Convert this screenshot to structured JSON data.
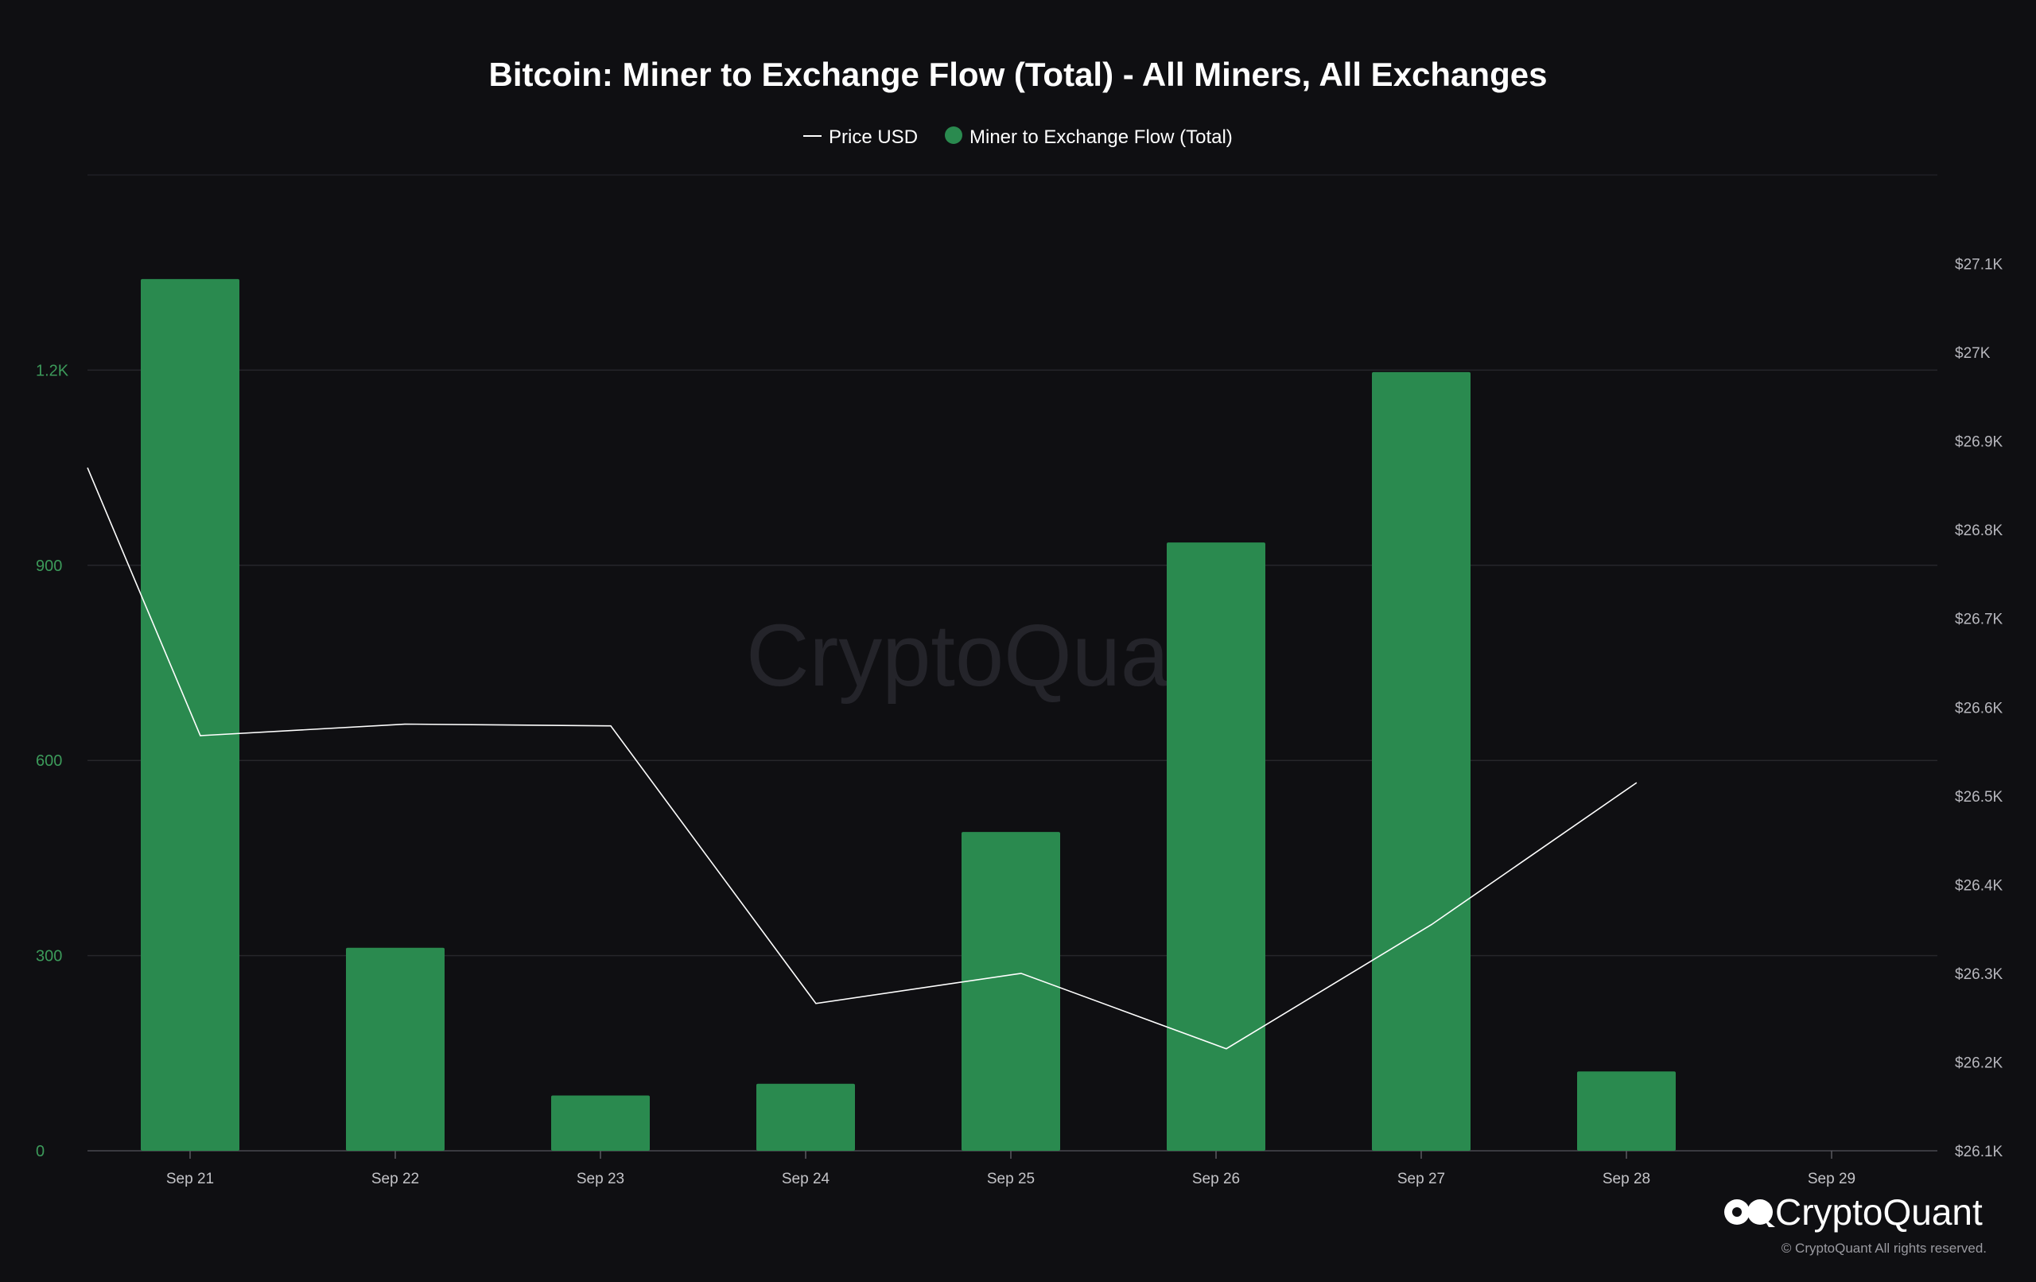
{
  "chart_data": {
    "type": "bar",
    "title": "Bitcoin: Miner to Exchange Flow (Total) - All Miners, All Exchanges",
    "categories": [
      "Sep 21",
      "Sep 22",
      "Sep 23",
      "Sep 24",
      "Sep 25",
      "Sep 26",
      "Sep 27",
      "Sep 28",
      "Sep 29"
    ],
    "legend": {
      "placement": "top-center",
      "items": [
        {
          "label": "Price USD",
          "marker": "line",
          "color": "#ffffff"
        },
        {
          "label": "Miner to Exchange Flow (Total)",
          "marker": "dot",
          "color": "#2a8a4f"
        }
      ]
    },
    "series": [
      {
        "name": "Miner to Exchange Flow (Total)",
        "type": "bar",
        "axis": "left",
        "color": "#2a8a4f",
        "values": [
          1340,
          312,
          85,
          103,
          490,
          935,
          1197,
          122,
          null
        ]
      },
      {
        "name": "Price USD",
        "type": "line",
        "axis": "right",
        "color": "#ffffff",
        "x_positions": [
          -0.5,
          0.05,
          1.05,
          2.05,
          3.05,
          4.05,
          5.05,
          6.05,
          7.05
        ],
        "values": [
          26870,
          26568,
          26581,
          26579,
          26266,
          26300,
          26215,
          26355,
          26515
        ]
      }
    ],
    "y_left": {
      "min": 0,
      "max": 1500,
      "ticks": [
        0,
        300,
        600,
        900,
        1200
      ],
      "tick_labels": [
        "0",
        "300",
        "600",
        "900",
        "1.2K"
      ]
    },
    "y_right": {
      "min": 26100,
      "max": 27200,
      "ticks": [
        26100,
        26200,
        26300,
        26400,
        26500,
        26600,
        26700,
        26800,
        26900,
        27000,
        27100
      ],
      "tick_labels": [
        "$26.1K",
        "$26.2K",
        "$26.3K",
        "$26.4K",
        "$26.5K",
        "$26.6K",
        "$26.7K",
        "$26.8K",
        "$26.9K",
        "$27K",
        "$27.1K"
      ]
    },
    "grid": true
  },
  "watermark": "CryptoQuant",
  "branding": {
    "logo_text": "CryptoQuant",
    "copyright": "© CryptoQuant All rights reserved."
  }
}
